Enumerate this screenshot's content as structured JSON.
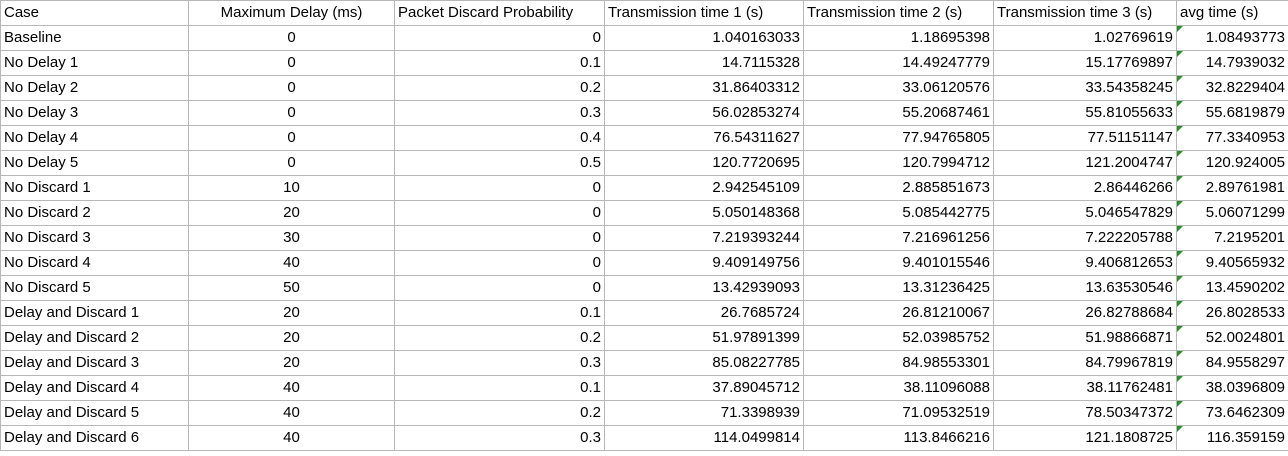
{
  "table": {
    "headers": [
      "Case",
      "Maximum Delay (ms)",
      "Packet Discard Probability",
      "Transmission time 1 (s)",
      "Transmission time 2 (s)",
      "Transmission time 3 (s)",
      "avg time (s)"
    ],
    "rows": [
      [
        "Baseline",
        "0",
        "0",
        "1.040163033",
        "1.18695398",
        "1.02769619",
        "1.08493773"
      ],
      [
        "No Delay 1",
        "0",
        "0.1",
        "14.7115328",
        "14.49247779",
        "15.17769897",
        "14.7939032"
      ],
      [
        "No Delay 2",
        "0",
        "0.2",
        "31.86403312",
        "33.06120576",
        "33.54358245",
        "32.8229404"
      ],
      [
        "No Delay 3",
        "0",
        "0.3",
        "56.02853274",
        "55.20687461",
        "55.81055633",
        "55.6819879"
      ],
      [
        "No Delay 4",
        "0",
        "0.4",
        "76.54311627",
        "77.94765805",
        "77.51151147",
        "77.3340953"
      ],
      [
        "No Delay 5",
        "0",
        "0.5",
        "120.7720695",
        "120.7994712",
        "121.2004747",
        "120.924005"
      ],
      [
        "No Discard 1",
        "10",
        "0",
        "2.942545109",
        "2.885851673",
        "2.86446266",
        "2.89761981"
      ],
      [
        "No Discard 2",
        "20",
        "0",
        "5.050148368",
        "5.085442775",
        "5.046547829",
        "5.06071299"
      ],
      [
        "No Discard 3",
        "30",
        "0",
        "7.219393244",
        "7.216961256",
        "7.222205788",
        "7.2195201"
      ],
      [
        "No Discard 4",
        "40",
        "0",
        "9.409149756",
        "9.401015546",
        "9.406812653",
        "9.40565932"
      ],
      [
        "No Discard 5",
        "50",
        "0",
        "13.42939093",
        "13.31236425",
        "13.63530546",
        "13.4590202"
      ],
      [
        "Delay and Discard 1",
        "20",
        "0.1",
        "26.7685724",
        "26.81210067",
        "26.82788684",
        "26.8028533"
      ],
      [
        "Delay and Discard 2",
        "20",
        "0.2",
        "51.97891399",
        "52.03985752",
        "51.98866871",
        "52.0024801"
      ],
      [
        "Delay and Discard 3",
        "20",
        "0.3",
        "85.08227785",
        "84.98553301",
        "84.79967819",
        "84.9558297"
      ],
      [
        "Delay and Discard 4",
        "40",
        "0.1",
        "37.89045712",
        "38.11096088",
        "38.11762481",
        "38.0396809"
      ],
      [
        "Delay and Discard 5",
        "40",
        "0.2",
        "71.3398939",
        "71.09532519",
        "78.50347372",
        "73.6462309"
      ],
      [
        "Delay and Discard 6",
        "40",
        "0.3",
        "114.0499814",
        "113.8466216",
        "121.1808725",
        "116.359159"
      ]
    ]
  },
  "colors": {
    "gridline": "#b7b7b7",
    "error_flag": "#2e8b2e"
  }
}
